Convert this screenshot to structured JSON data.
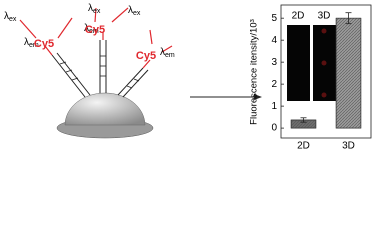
{
  "diagram": {
    "labels": [
      {
        "main": "λ",
        "sub": "ex"
      },
      {
        "main": "λ",
        "sub": "em"
      },
      {
        "main": "λ",
        "sub": "ex"
      },
      {
        "main": "λ",
        "sub": "em"
      },
      {
        "main": "λ",
        "sub": "ex"
      },
      {
        "main": "λ",
        "sub": "em"
      }
    ],
    "dyes": [
      "Cy5",
      "Cy5",
      "Cy5"
    ]
  },
  "inset": {
    "labels": [
      "2D",
      "3D"
    ]
  },
  "chart_data": {
    "type": "bar",
    "y_label": "Fluorescence itensity/10³",
    "categories": [
      "2D",
      "3D"
    ],
    "values": [
      0.37,
      5.0
    ],
    "errors": [
      0.1,
      0.25
    ],
    "colors": [
      "#6e6e6e",
      "#9a9a9a"
    ],
    "ylim": [
      -0.45,
      5.6
    ],
    "yticks": [
      0,
      1,
      2,
      3,
      4,
      5
    ]
  }
}
